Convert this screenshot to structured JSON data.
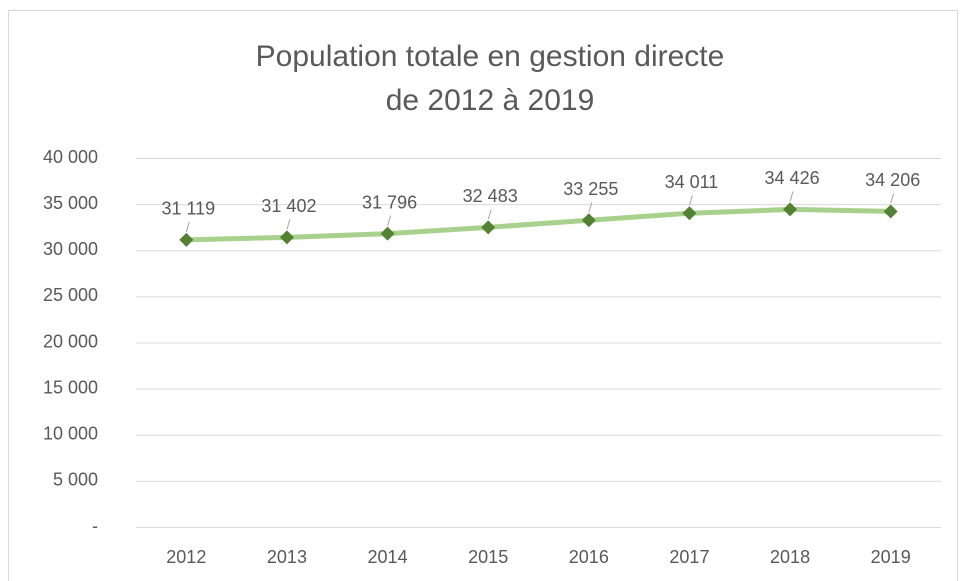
{
  "chart_data": {
    "type": "line",
    "title": [
      "Population totale en gestion directe",
      "de 2012 à 2019"
    ],
    "categories": [
      "2012",
      "2013",
      "2014",
      "2015",
      "2016",
      "2017",
      "2018",
      "2019"
    ],
    "series": [
      {
        "name": "Population totale",
        "line_color": "#a9d18e",
        "marker_color": "#548235",
        "values": [
          31119,
          31402,
          31796,
          32483,
          33255,
          34011,
          34426,
          34206
        ],
        "value_labels": [
          "31 119",
          "31 402",
          "31 796",
          "32 483",
          "33 255",
          "34 011",
          "34 426",
          "34 206"
        ]
      }
    ],
    "ylim": [
      0,
      40000
    ],
    "yticks": [
      {
        "value": 0,
        "label": "-"
      },
      {
        "value": 5000,
        "label": "5 000"
      },
      {
        "value": 10000,
        "label": "10 000"
      },
      {
        "value": 15000,
        "label": "15 000"
      },
      {
        "value": 20000,
        "label": "20 000"
      },
      {
        "value": 25000,
        "label": "25 000"
      },
      {
        "value": 30000,
        "label": "30 000"
      },
      {
        "value": 35000,
        "label": "35 000"
      },
      {
        "value": 40000,
        "label": "40 000"
      }
    ],
    "grid": true
  }
}
